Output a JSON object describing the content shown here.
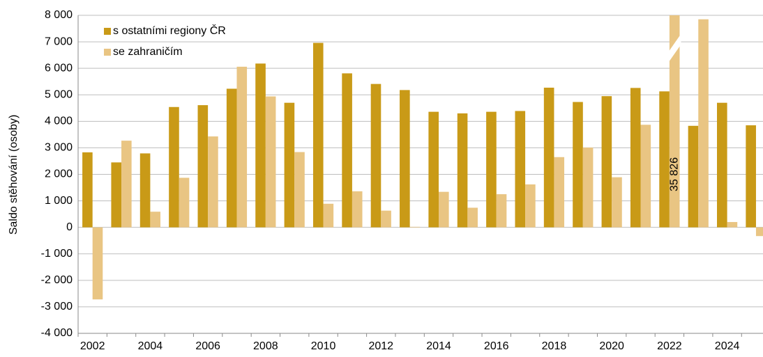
{
  "chart_data": {
    "type": "bar",
    "y_axis_label": "Saldo stěhování (osoby)",
    "categories": [
      "2002",
      null,
      "2004",
      null,
      "2006",
      null,
      "2008",
      null,
      "2010",
      null,
      "2012",
      null,
      "2014",
      null,
      "2016",
      null,
      "2018",
      null,
      "2020",
      null,
      "2022",
      null,
      "2024",
      null
    ],
    "series": [
      {
        "name": "s ostatními regiony ČR",
        "color": "#c99a17",
        "values": [
          2830,
          2450,
          2790,
          4540,
          4610,
          5230,
          6180,
          4700,
          6960,
          5810,
          5410,
          5180,
          4360,
          4300,
          4360,
          4390,
          5270,
          4730,
          4950,
          5260,
          5130,
          3830,
          4700,
          3850
        ]
      },
      {
        "name": "se zahraničím",
        "color": "#e9c583",
        "values": [
          -2720,
          3270,
          590,
          1870,
          3430,
          6060,
          4940,
          2840,
          890,
          1360,
          630,
          20,
          1340,
          740,
          1250,
          1620,
          2650,
          3010,
          1890,
          3870,
          35826,
          7850,
          200,
          -330
        ],
        "value_labels": [
          null,
          null,
          null,
          null,
          null,
          null,
          null,
          null,
          null,
          null,
          null,
          null,
          null,
          null,
          null,
          null,
          null,
          null,
          null,
          null,
          "35 826",
          null,
          null,
          null
        ]
      }
    ],
    "ylim": [
      -4000,
      8000
    ],
    "yticks": [
      {
        "value": -4000,
        "label": "-4 000"
      },
      {
        "value": -3000,
        "label": "-3 000"
      },
      {
        "value": -2000,
        "label": "-2 000"
      },
      {
        "value": -1000,
        "label": "-1 000"
      },
      0,
      {
        "value": 1000,
        "label": "1 000"
      },
      {
        "value": 2000,
        "label": "2 000"
      },
      {
        "value": 3000,
        "label": "3 000"
      },
      {
        "value": 4000,
        "label": "4 000"
      },
      {
        "value": 5000,
        "label": "5 000"
      },
      {
        "value": 6000,
        "label": "6 000"
      },
      {
        "value": 7000,
        "label": "7 000"
      },
      {
        "value": 8000,
        "label": "8 000"
      }
    ],
    "grid": true,
    "legend": "top-left"
  }
}
